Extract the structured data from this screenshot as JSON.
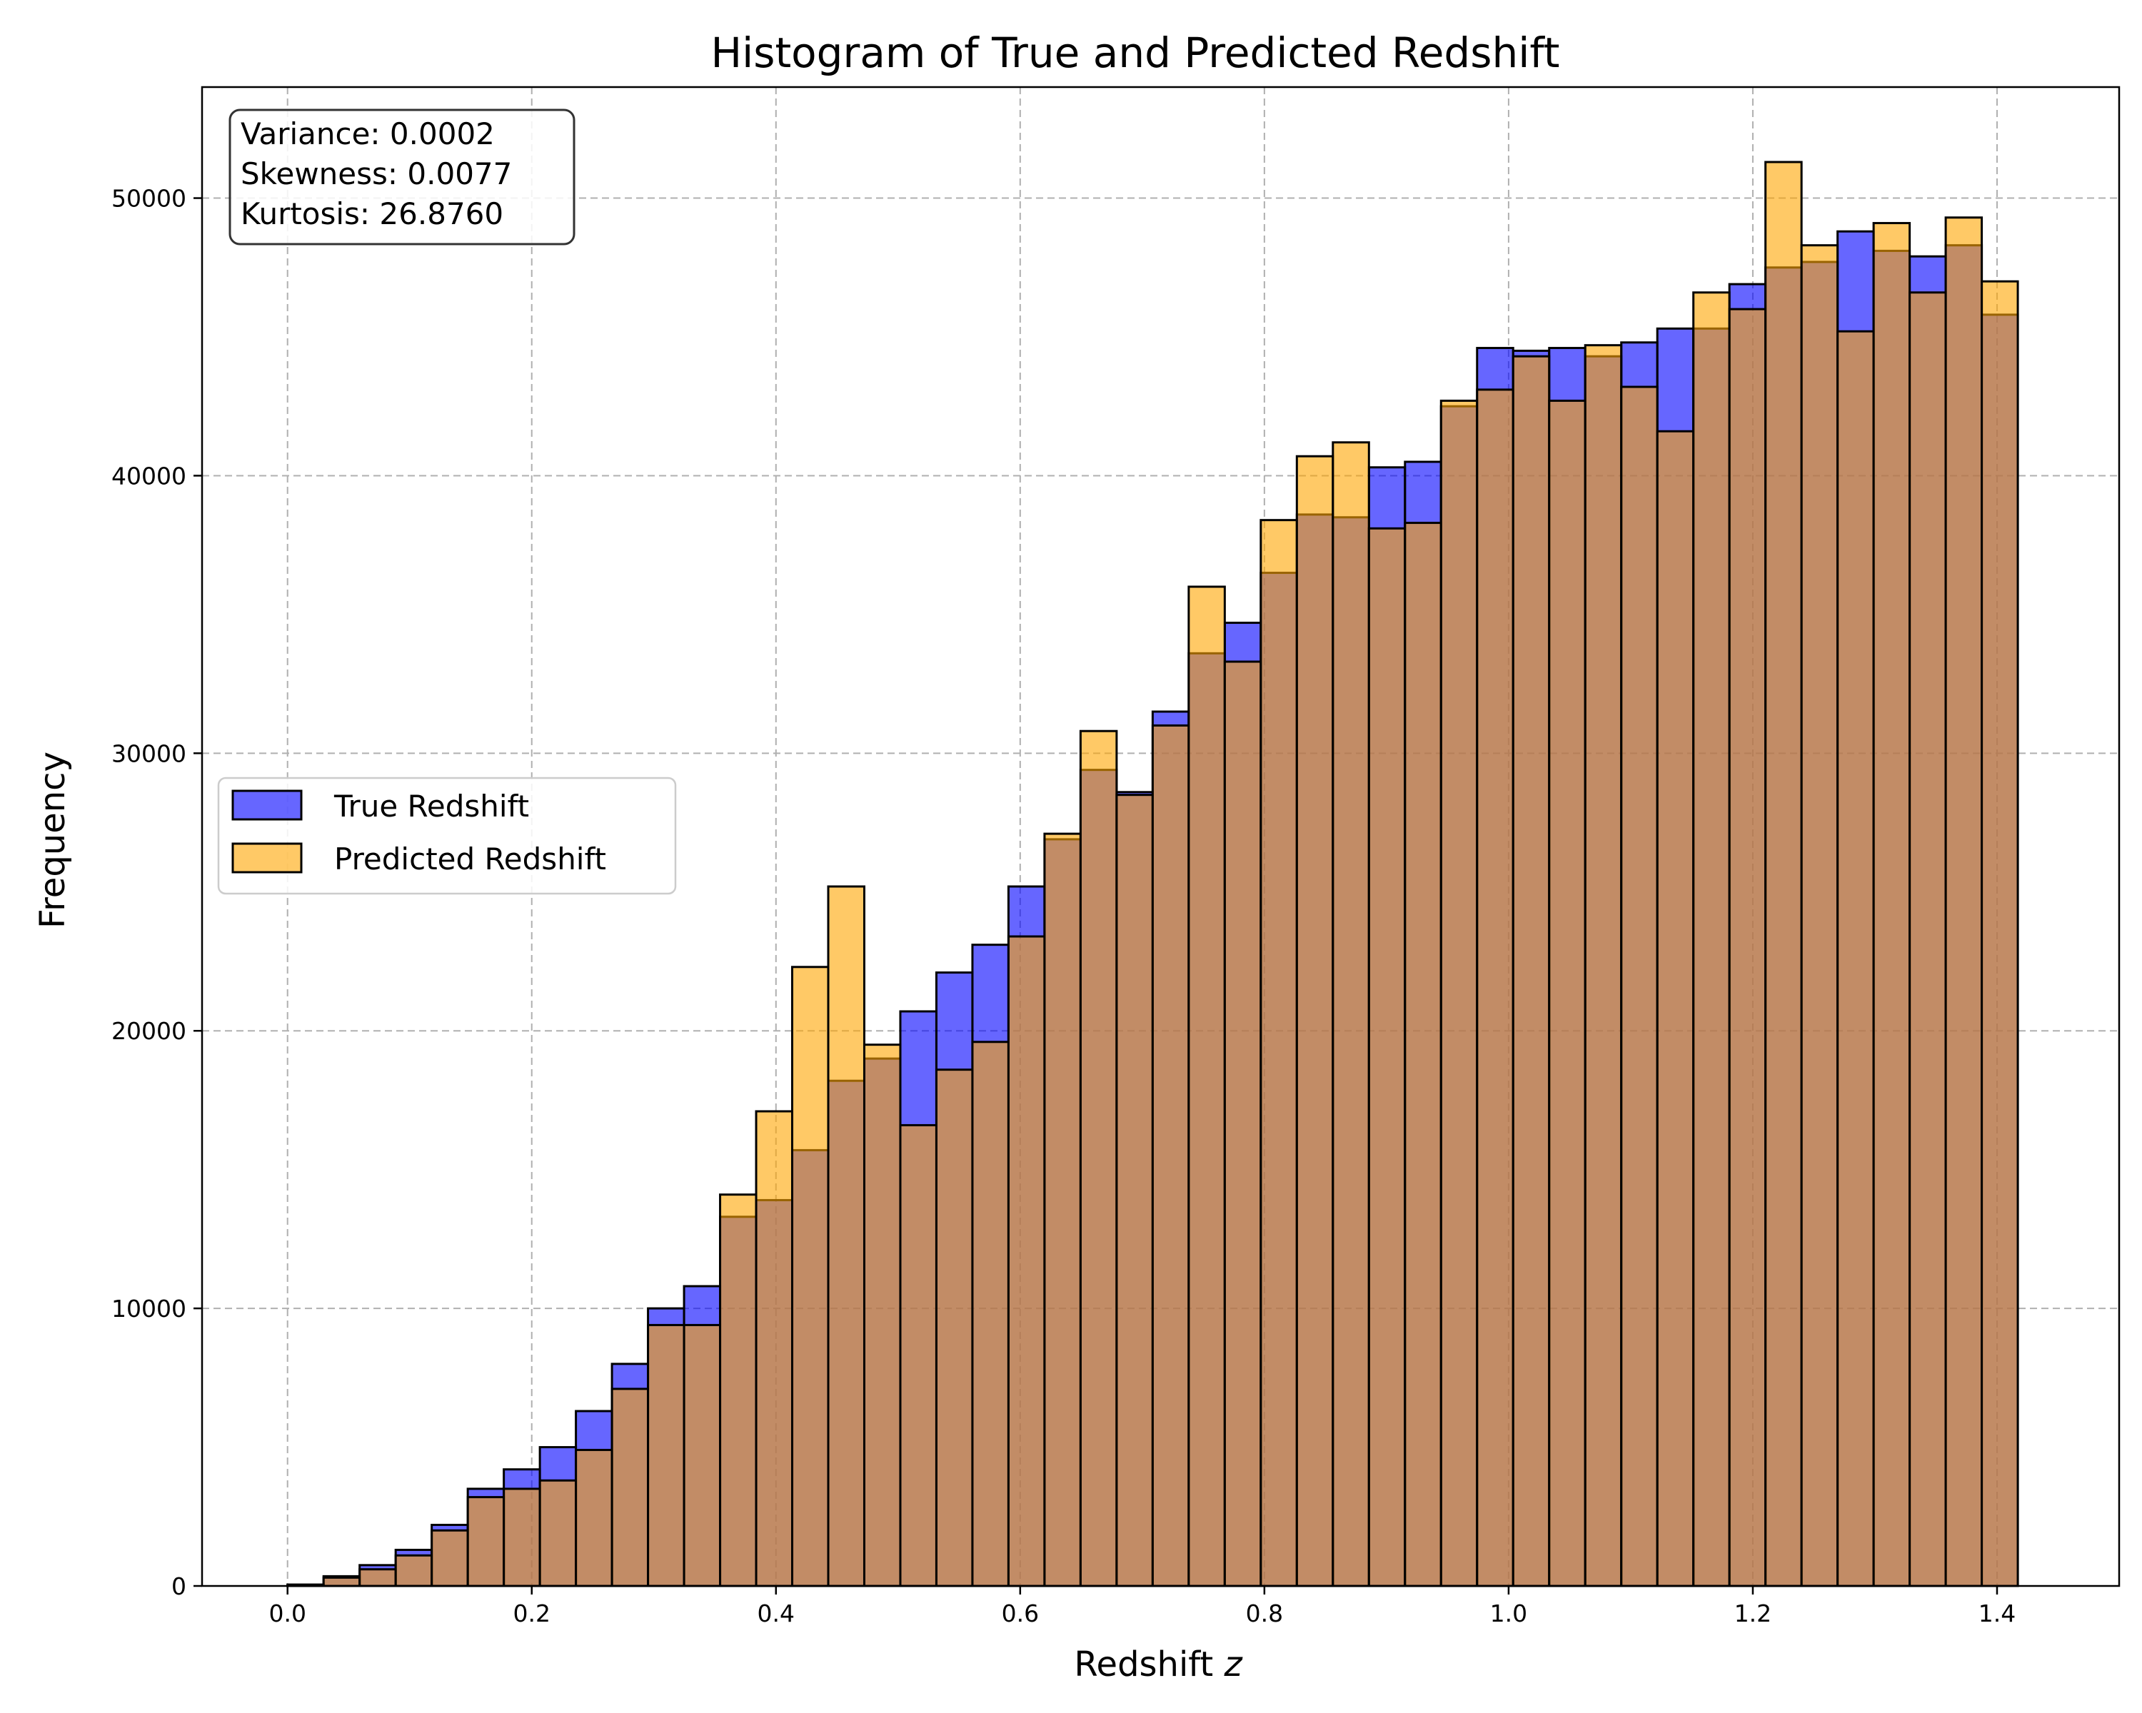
{
  "chart_data": {
    "type": "bar",
    "title": "Histogram of True and Predicted Redshift",
    "xlabel": "Redshift z",
    "xlabel_text": "Redshift ",
    "xlabel_var": "z",
    "ylabel": "Frequency",
    "xlim": [
      -0.07,
      1.5
    ],
    "ylim": [
      0,
      54000
    ],
    "x_ticks": [
      0.0,
      0.2,
      0.4,
      0.6,
      0.8,
      1.0,
      1.2,
      1.4
    ],
    "x_tick_labels": [
      "0.0",
      "0.2",
      "0.4",
      "0.6",
      "0.8",
      "1.0",
      "1.2",
      "1.4"
    ],
    "y_ticks": [
      0,
      10000,
      20000,
      30000,
      40000,
      50000
    ],
    "y_tick_labels": [
      "0",
      "10000",
      "20000",
      "30000",
      "40000",
      "50000"
    ],
    "grid": true,
    "legend_position": "center-left",
    "bins_start": 0.0,
    "bins_end": 1.417,
    "stats": [
      "Variance: 0.0002",
      "Skewness: 0.0077",
      "Kurtosis: 26.8760"
    ],
    "series": [
      {
        "name": "True Redshift",
        "color": "#0000ff",
        "values": [
          50,
          350,
          750,
          1300,
          2200,
          3500,
          4200,
          5000,
          6300,
          8000,
          10000,
          10800,
          13300,
          13900,
          15700,
          18200,
          19000,
          20700,
          22100,
          23100,
          25200,
          26900,
          29400,
          28600,
          31500,
          33600,
          34700,
          36500,
          38600,
          38500,
          40300,
          40500,
          42500,
          44600,
          44500,
          44600,
          44300,
          44800,
          45300,
          45300,
          46900,
          47500,
          47700,
          48800,
          48100,
          47900,
          48300,
          45800
        ]
      },
      {
        "name": "Predicted Redshift",
        "color": "#ffa500",
        "values": [
          30,
          300,
          600,
          1100,
          2000,
          3200,
          3500,
          3800,
          4900,
          7100,
          9400,
          9400,
          14100,
          17100,
          22300,
          25200,
          19500,
          16600,
          18600,
          19600,
          23400,
          27100,
          30800,
          28500,
          31000,
          36000,
          33300,
          38400,
          40700,
          41200,
          38100,
          38300,
          42700,
          43100,
          44300,
          42700,
          44700,
          43200,
          41600,
          46600,
          46000,
          51300,
          48300,
          45200,
          49100,
          46600,
          49300,
          47000
        ]
      }
    ]
  }
}
